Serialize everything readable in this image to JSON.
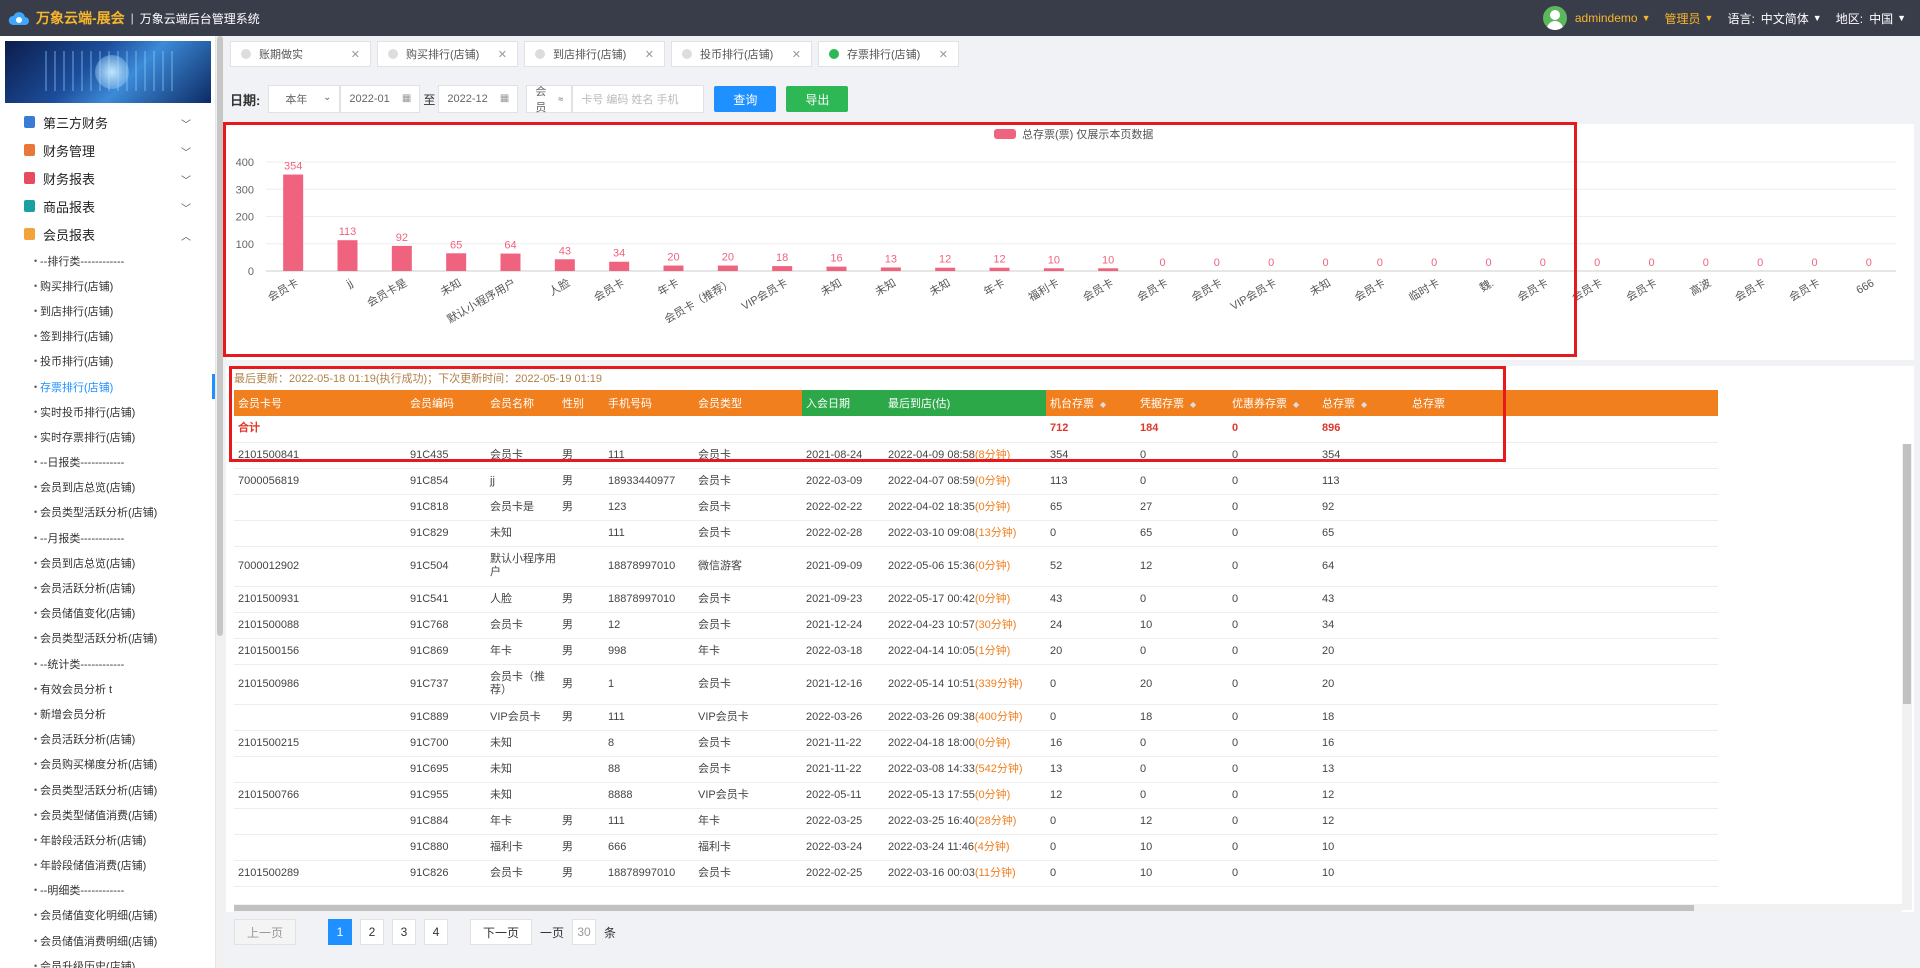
{
  "header": {
    "brand": "万象云端-展会",
    "subtitle": "万象云端后台管理系统",
    "user": "admindemo",
    "role": "管理员",
    "lang_label": "语言:",
    "lang_value": "中文简体",
    "region_label": "地区:",
    "region_value": "中国"
  },
  "sidebar": {
    "groups": [
      {
        "label": "第三方财务",
        "color": "#3a7bd5"
      },
      {
        "label": "财务管理",
        "color": "#e9763a"
      },
      {
        "label": "财务报表",
        "color": "#e84a5f"
      },
      {
        "label": "商品报表",
        "color": "#1aa0a0"
      },
      {
        "label": "会员报表",
        "color": "#f2a33a"
      }
    ],
    "items": [
      "--排行类------------",
      "购买排行(店铺)",
      "到店排行(店铺)",
      "签到排行(店铺)",
      "投币排行(店铺)",
      "存票排行(店铺)",
      "实时投币排行(店铺)",
      "实时存票排行(店铺)",
      "--日报类------------",
      "会员到店总览(店铺)",
      "会员类型活跃分析(店铺)",
      "--月报类------------",
      "会员到店总览(店铺)",
      "会员活跃分析(店铺)",
      "会员储值变化(店铺)",
      "会员类型活跃分析(店铺)",
      "--统计类------------",
      "有效会员分析 t",
      "新增会员分析",
      "会员活跃分析(店铺)",
      "会员购买梯度分析(店铺)",
      "会员类型活跃分析(店铺)",
      "会员类型储值消费(店铺)",
      "年龄段活跃分析(店铺)",
      "年龄段储值消费(店铺)",
      "--明细类------------",
      "会员储值变化明细(店铺)",
      "会员储值消费明细(店铺)",
      "会员升级历史(店铺)"
    ],
    "active_index": 5
  },
  "tabs": [
    {
      "label": "账期做实",
      "active": false
    },
    {
      "label": "购买排行(店铺)",
      "active": false
    },
    {
      "label": "到店排行(店铺)",
      "active": false
    },
    {
      "label": "投币排行(店铺)",
      "active": false
    },
    {
      "label": "存票排行(店铺)",
      "active": true
    }
  ],
  "filter": {
    "date_label": "日期:",
    "period": "本年",
    "start": "2022-01",
    "to": "至",
    "end": "2022-12",
    "member_select": "会员",
    "member_placeholder": "卡号 编码 姓名 手机",
    "query": "查询",
    "export": "导出"
  },
  "chart_data": {
    "type": "bar",
    "legend": "总存票(票) 仅展示本页数据",
    "legend_placement": "top-center",
    "color": "#f0637e",
    "ylim": [
      0,
      400
    ],
    "yticks": [
      0,
      100,
      200,
      300,
      400
    ],
    "categories": [
      "会员卡",
      "jj",
      "会员卡是",
      "未知",
      "默认小程序用户",
      "人脸",
      "会员卡",
      "年卡",
      "会员卡（推荐）",
      "VIP会员卡",
      "未知",
      "未知",
      "未知",
      "年卡",
      "福利卡",
      "会员卡",
      "会员卡",
      "会员卡",
      "VIP会员卡",
      "未知",
      "会员卡",
      "临时卡",
      "魏.",
      "会员卡",
      "会员卡",
      "会员卡",
      "高波",
      "会员卡",
      "会员卡",
      "666"
    ],
    "values": [
      354,
      113,
      92,
      65,
      64,
      43,
      34,
      20,
      20,
      18,
      16,
      13,
      12,
      12,
      10,
      10,
      0,
      0,
      0,
      0,
      0,
      0,
      0,
      0,
      0,
      0,
      0,
      0,
      0,
      0
    ]
  },
  "update_text": "最后更新：2022-05-18 01:19(执行成功)；下次更新时间：2022-05-19 01:19",
  "table": {
    "headers": [
      "会员卡号",
      "会员编码",
      "会员名称",
      "性别",
      "手机号码",
      "会员类型",
      "入会日期",
      "最后到店(估)",
      "机台存票",
      "凭据存票",
      "优惠券存票",
      "总存票",
      "总存票"
    ],
    "sum": {
      "label": "合计",
      "machine": "712",
      "voucher": "184",
      "coupon": "0",
      "total": "896"
    },
    "rows": [
      [
        "2101500841",
        "91C435",
        "会员卡",
        "男",
        "111",
        "会员卡",
        "2021-08-24",
        "2022-04-09 08:58",
        "8分钟",
        "354",
        "0",
        "0",
        "354"
      ],
      [
        "7000056819",
        "91C854",
        "jj",
        "男",
        "18933440977",
        "会员卡",
        "2022-03-09",
        "2022-04-07 08:59",
        "0分钟",
        "113",
        "0",
        "0",
        "113"
      ],
      [
        "",
        "91C818",
        "会员卡是",
        "男",
        "123",
        "会员卡",
        "2022-02-22",
        "2022-04-02 18:35",
        "0分钟",
        "65",
        "27",
        "0",
        "92"
      ],
      [
        "",
        "91C829",
        "未知",
        "",
        "111",
        "会员卡",
        "2022-02-28",
        "2022-03-10 09:08",
        "13分钟",
        "0",
        "65",
        "0",
        "65"
      ],
      [
        "7000012902",
        "91C504",
        "默认小程序用户",
        "",
        "18878997010",
        "微信游客",
        "2021-09-09",
        "2022-05-06 15:36",
        "0分钟",
        "52",
        "12",
        "0",
        "64"
      ],
      [
        "2101500931",
        "91C541",
        "人脸",
        "男",
        "18878997010",
        "会员卡",
        "2021-09-23",
        "2022-05-17 00:42",
        "0分钟",
        "43",
        "0",
        "0",
        "43"
      ],
      [
        "2101500088",
        "91C768",
        "会员卡",
        "男",
        "12",
        "会员卡",
        "2021-12-24",
        "2022-04-23 10:57",
        "30分钟",
        "24",
        "10",
        "0",
        "34"
      ],
      [
        "2101500156",
        "91C869",
        "年卡",
        "男",
        "998",
        "年卡",
        "2022-03-18",
        "2022-04-14 10:05",
        "1分钟",
        "20",
        "0",
        "0",
        "20"
      ],
      [
        "2101500986",
        "91C737",
        "会员卡（推荐）",
        "男",
        "1",
        "会员卡",
        "2021-12-16",
        "2022-05-14 10:51",
        "339分钟",
        "0",
        "20",
        "0",
        "20"
      ],
      [
        "",
        "91C889",
        "VIP会员卡",
        "男",
        "111",
        "VIP会员卡",
        "2022-03-26",
        "2022-03-26 09:38",
        "400分钟",
        "0",
        "18",
        "0",
        "18"
      ],
      [
        "2101500215",
        "91C700",
        "未知",
        "",
        "8",
        "会员卡",
        "2021-11-22",
        "2022-04-18 18:00",
        "0分钟",
        "16",
        "0",
        "0",
        "16"
      ],
      [
        "",
        "91C695",
        "未知",
        "",
        "88",
        "会员卡",
        "2021-11-22",
        "2022-03-08 14:33",
        "542分钟",
        "13",
        "0",
        "0",
        "13"
      ],
      [
        "2101500766",
        "91C955",
        "未知",
        "",
        "8888",
        "VIP会员卡",
        "2022-05-11",
        "2022-05-13 17:55",
        "0分钟",
        "12",
        "0",
        "0",
        "12"
      ],
      [
        "",
        "91C884",
        "年卡",
        "男",
        "111",
        "年卡",
        "2022-03-25",
        "2022-03-25 16:40",
        "28分钟",
        "0",
        "12",
        "0",
        "12"
      ],
      [
        "",
        "91C880",
        "福利卡",
        "男",
        "666",
        "福利卡",
        "2022-03-24",
        "2022-03-24 11:46",
        "4分钟",
        "0",
        "10",
        "0",
        "10"
      ],
      [
        "2101500289",
        "91C826",
        "会员卡",
        "男",
        "18878997010",
        "会员卡",
        "2022-02-25",
        "2022-03-16 00:03",
        "11分钟",
        "0",
        "10",
        "0",
        "10"
      ]
    ]
  },
  "pager": {
    "prev": "上一页",
    "pages": [
      "1",
      "2",
      "3",
      "4"
    ],
    "current": "1",
    "next": "下一页",
    "per_page_label": "一页",
    "per_page": "30",
    "unit": "条"
  }
}
